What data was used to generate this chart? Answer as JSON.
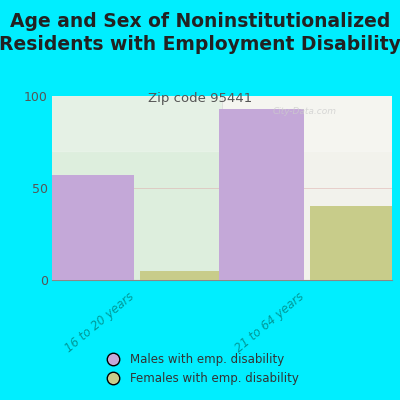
{
  "title": "Age and Sex of Noninstitutionalized\nResidents with Employment Disability",
  "subtitle": "Zip code 95441",
  "categories": [
    "16 to 20 years",
    "21 to 64 years"
  ],
  "males": [
    57,
    93
  ],
  "females": [
    5,
    40
  ],
  "male_color": "#c4a8d8",
  "female_color": "#c8cc8a",
  "ylim": [
    0,
    100
  ],
  "yticks": [
    0,
    50,
    100
  ],
  "bg_color": "#00eeff",
  "title_fontsize": 13.5,
  "subtitle_fontsize": 9.5,
  "legend_male": "Males with emp. disability",
  "legend_female": "Females with emp. disability",
  "bar_width": 0.25,
  "watermark": "City-Data.com"
}
